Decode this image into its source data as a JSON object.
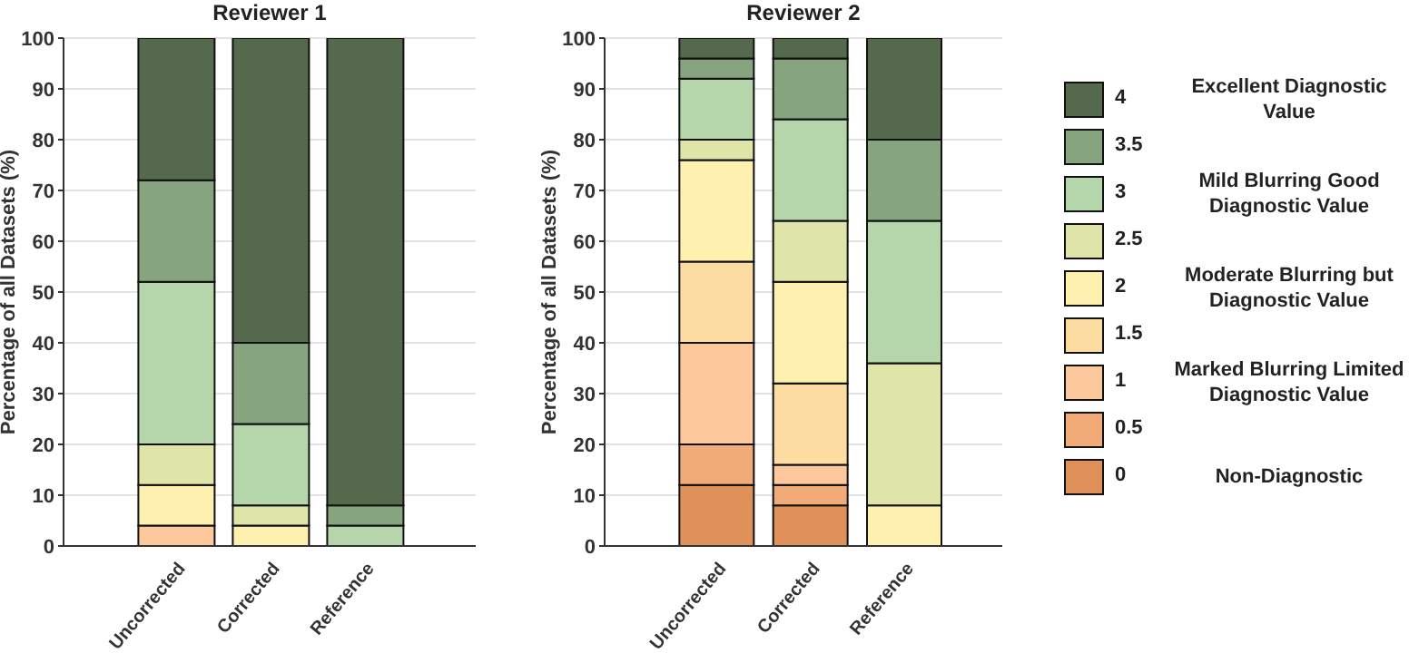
{
  "chart_data": [
    {
      "type": "bar",
      "title": "Reviewer 1",
      "ylabel": "Percentage of all Datasets (%)",
      "categories": [
        "Uncorrected",
        "Corrected",
        "Reference"
      ],
      "stacked": true,
      "ylim": [
        0,
        100
      ],
      "yticks": [
        0,
        10,
        20,
        30,
        40,
        50,
        60,
        70,
        80,
        90,
        100
      ],
      "grid": "y",
      "series": [
        {
          "color": "#e0915a",
          "values": [
            0,
            0,
            0
          ]
        },
        {
          "color": "#f0ab78",
          "values": [
            0,
            0,
            0
          ]
        },
        {
          "color": "#fcc89c",
          "values": [
            4,
            0,
            0
          ]
        },
        {
          "color": "#fddca2",
          "values": [
            0,
            0,
            0
          ]
        },
        {
          "color": "#fef1b0",
          "values": [
            8,
            4,
            0
          ]
        },
        {
          "color": "#dfe4a8",
          "values": [
            8,
            4,
            0
          ]
        },
        {
          "color": "#b5d6aa",
          "values": [
            32,
            16,
            4
          ]
        },
        {
          "color": "#86a57e",
          "values": [
            20,
            16,
            4
          ]
        },
        {
          "color": "#55694d",
          "values": [
            28,
            60,
            92
          ]
        }
      ]
    },
    {
      "type": "bar",
      "title": "Reviewer 2",
      "ylabel": "Percentage of all Datasets (%)",
      "categories": [
        "Uncorrected",
        "Corrected",
        "Reference"
      ],
      "stacked": true,
      "ylim": [
        0,
        100
      ],
      "yticks": [
        0,
        10,
        20,
        30,
        40,
        50,
        60,
        70,
        80,
        90,
        100
      ],
      "grid": "y",
      "legend": "right",
      "annotations": [
        "Excellent Diagnostic Value",
        "Mild Blurring Good Diagnostic Value",
        "Moderate Blurring but Diagnostic Value",
        "Marked Blurring Limited Diagnostic Value",
        "Non-Diagnostic"
      ],
      "series": [
        {
          "name": "0",
          "color": "#e0915a",
          "values": [
            12,
            8,
            0
          ]
        },
        {
          "name": "0.5",
          "color": "#f0ab78",
          "values": [
            8,
            4,
            0
          ]
        },
        {
          "name": "1",
          "color": "#fcc89c",
          "values": [
            20,
            4,
            0
          ]
        },
        {
          "name": "1.5",
          "color": "#fddca2",
          "values": [
            16,
            16,
            0
          ]
        },
        {
          "name": "2",
          "color": "#fef1b0",
          "values": [
            20,
            20,
            8
          ]
        },
        {
          "name": "2.5",
          "color": "#dfe4a8",
          "values": [
            4,
            12,
            28
          ]
        },
        {
          "name": "3",
          "color": "#b5d6aa",
          "values": [
            12,
            20,
            28
          ]
        },
        {
          "name": "3.5",
          "color": "#86a57e",
          "values": [
            4,
            12,
            16
          ]
        },
        {
          "name": "4",
          "color": "#55694d",
          "values": [
            4,
            4,
            20
          ]
        }
      ]
    }
  ]
}
